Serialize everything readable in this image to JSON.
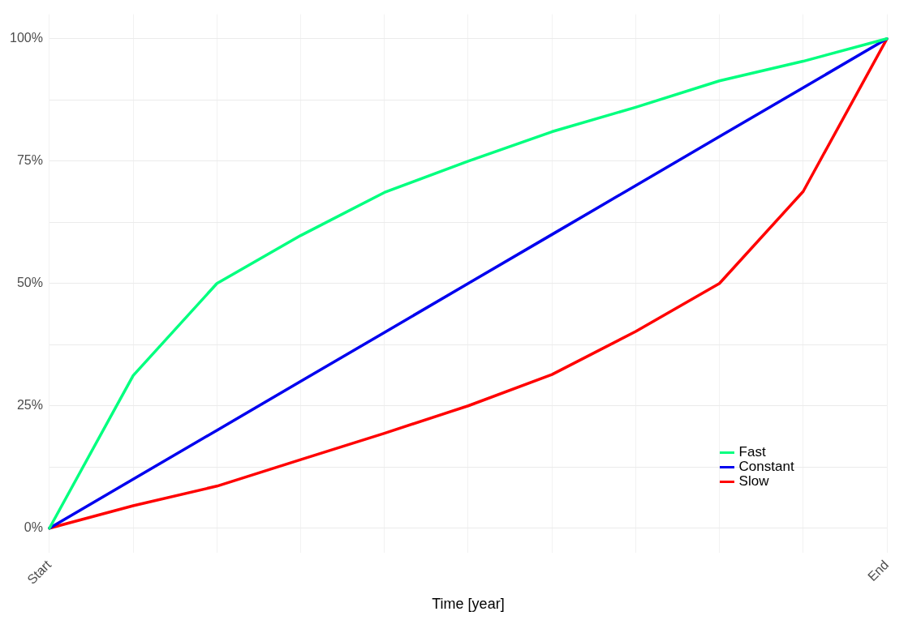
{
  "chart_data": {
    "type": "line",
    "xlabel": "Time [year]",
    "categories": [
      "Start",
      null,
      null,
      null,
      null,
      null,
      null,
      null,
      null,
      null,
      "End"
    ],
    "ylim": [
      -5,
      105
    ],
    "yticks": [
      {
        "value": 0,
        "label": "0%"
      },
      {
        "value": 12.5,
        "label": null
      },
      {
        "value": 25,
        "label": "25%"
      },
      {
        "value": 37.5,
        "label": null
      },
      {
        "value": 50,
        "label": "50%"
      },
      {
        "value": 62.5,
        "label": null
      },
      {
        "value": 75,
        "label": "75%"
      },
      {
        "value": 87.5,
        "label": null
      },
      {
        "value": 100,
        "label": "100%"
      }
    ],
    "series": [
      {
        "name": "Fast",
        "color": "#00ff7f",
        "values": [
          0,
          31.2,
          50,
          59.8,
          68.6,
          75,
          81,
          86,
          91.4,
          95.4,
          100
        ]
      },
      {
        "name": "Constant",
        "color": "#0000ee",
        "values": [
          0,
          10,
          20,
          30,
          40,
          50,
          60,
          70,
          80,
          90,
          100
        ]
      },
      {
        "name": "Slow",
        "color": "#ff0000",
        "values": [
          0,
          4.6,
          8.6,
          14,
          19.4,
          25,
          31.4,
          40.2,
          50,
          68.8,
          100
        ]
      }
    ],
    "grid": true,
    "legend": "bottom right",
    "marker": "none",
    "line_style": "solid"
  }
}
